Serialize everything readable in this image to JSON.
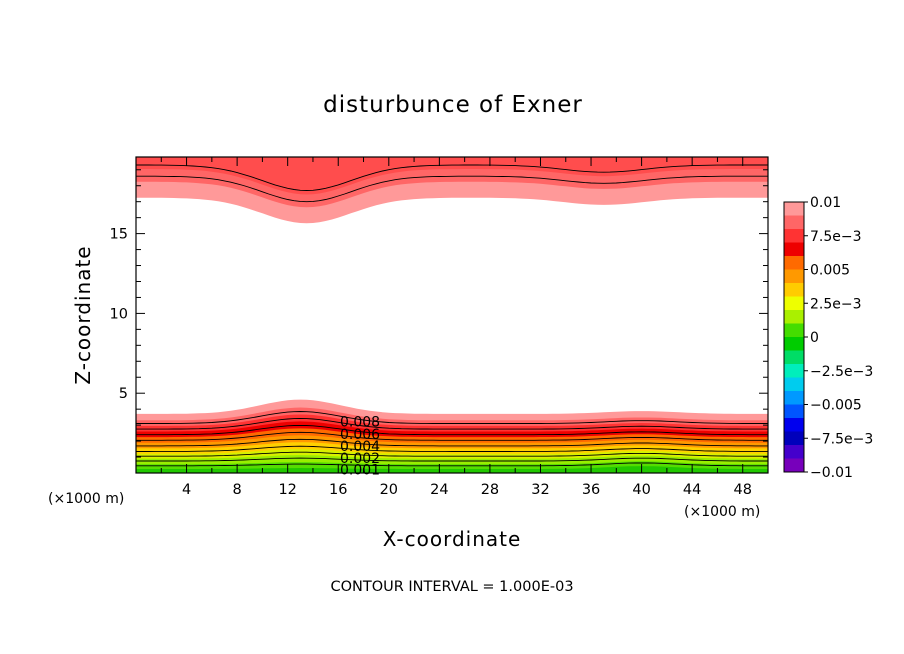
{
  "chart_data": {
    "type": "contour",
    "title": "disturbunce of Exner",
    "xlabel": "X-coordinate",
    "ylabel": "Z-coordinate",
    "x_unit": "(×1000 m)",
    "xlim": [
      0,
      50
    ],
    "ylim": [
      0,
      19.8
    ],
    "xticks": [
      "4",
      "8",
      "12",
      "16",
      "20",
      "24",
      "28",
      "32",
      "36",
      "40",
      "44",
      "48"
    ],
    "yticks": [
      "5",
      "10",
      "15"
    ],
    "colorbar": {
      "min": -0.01,
      "max": 0.01,
      "labels": [
        "0.01",
        "7.5e-3",
        "0.005",
        "2.5e-3",
        "0",
        "-2.5e-3",
        "-0.005",
        "-7.5e-3",
        "-0.01"
      ],
      "colors": [
        "#ff9999",
        "#ff6666",
        "#ff3333",
        "#ee0000",
        "#ff6a00",
        "#ff9900",
        "#ffcc00",
        "#eeff00",
        "#aaf000",
        "#44dd00",
        "#00cc00",
        "#00dd66",
        "#00eebb",
        "#00ccee",
        "#0099ff",
        "#0055ff",
        "#0000ee",
        "#0000bb",
        "#4400cc",
        "#7700bb"
      ]
    },
    "contour_labels": [
      "0.008",
      "0.006",
      "0.004",
      "0.002",
      "0.001"
    ],
    "contour_interval": "CONTOUR INTERVAL = 1.000E-03"
  }
}
